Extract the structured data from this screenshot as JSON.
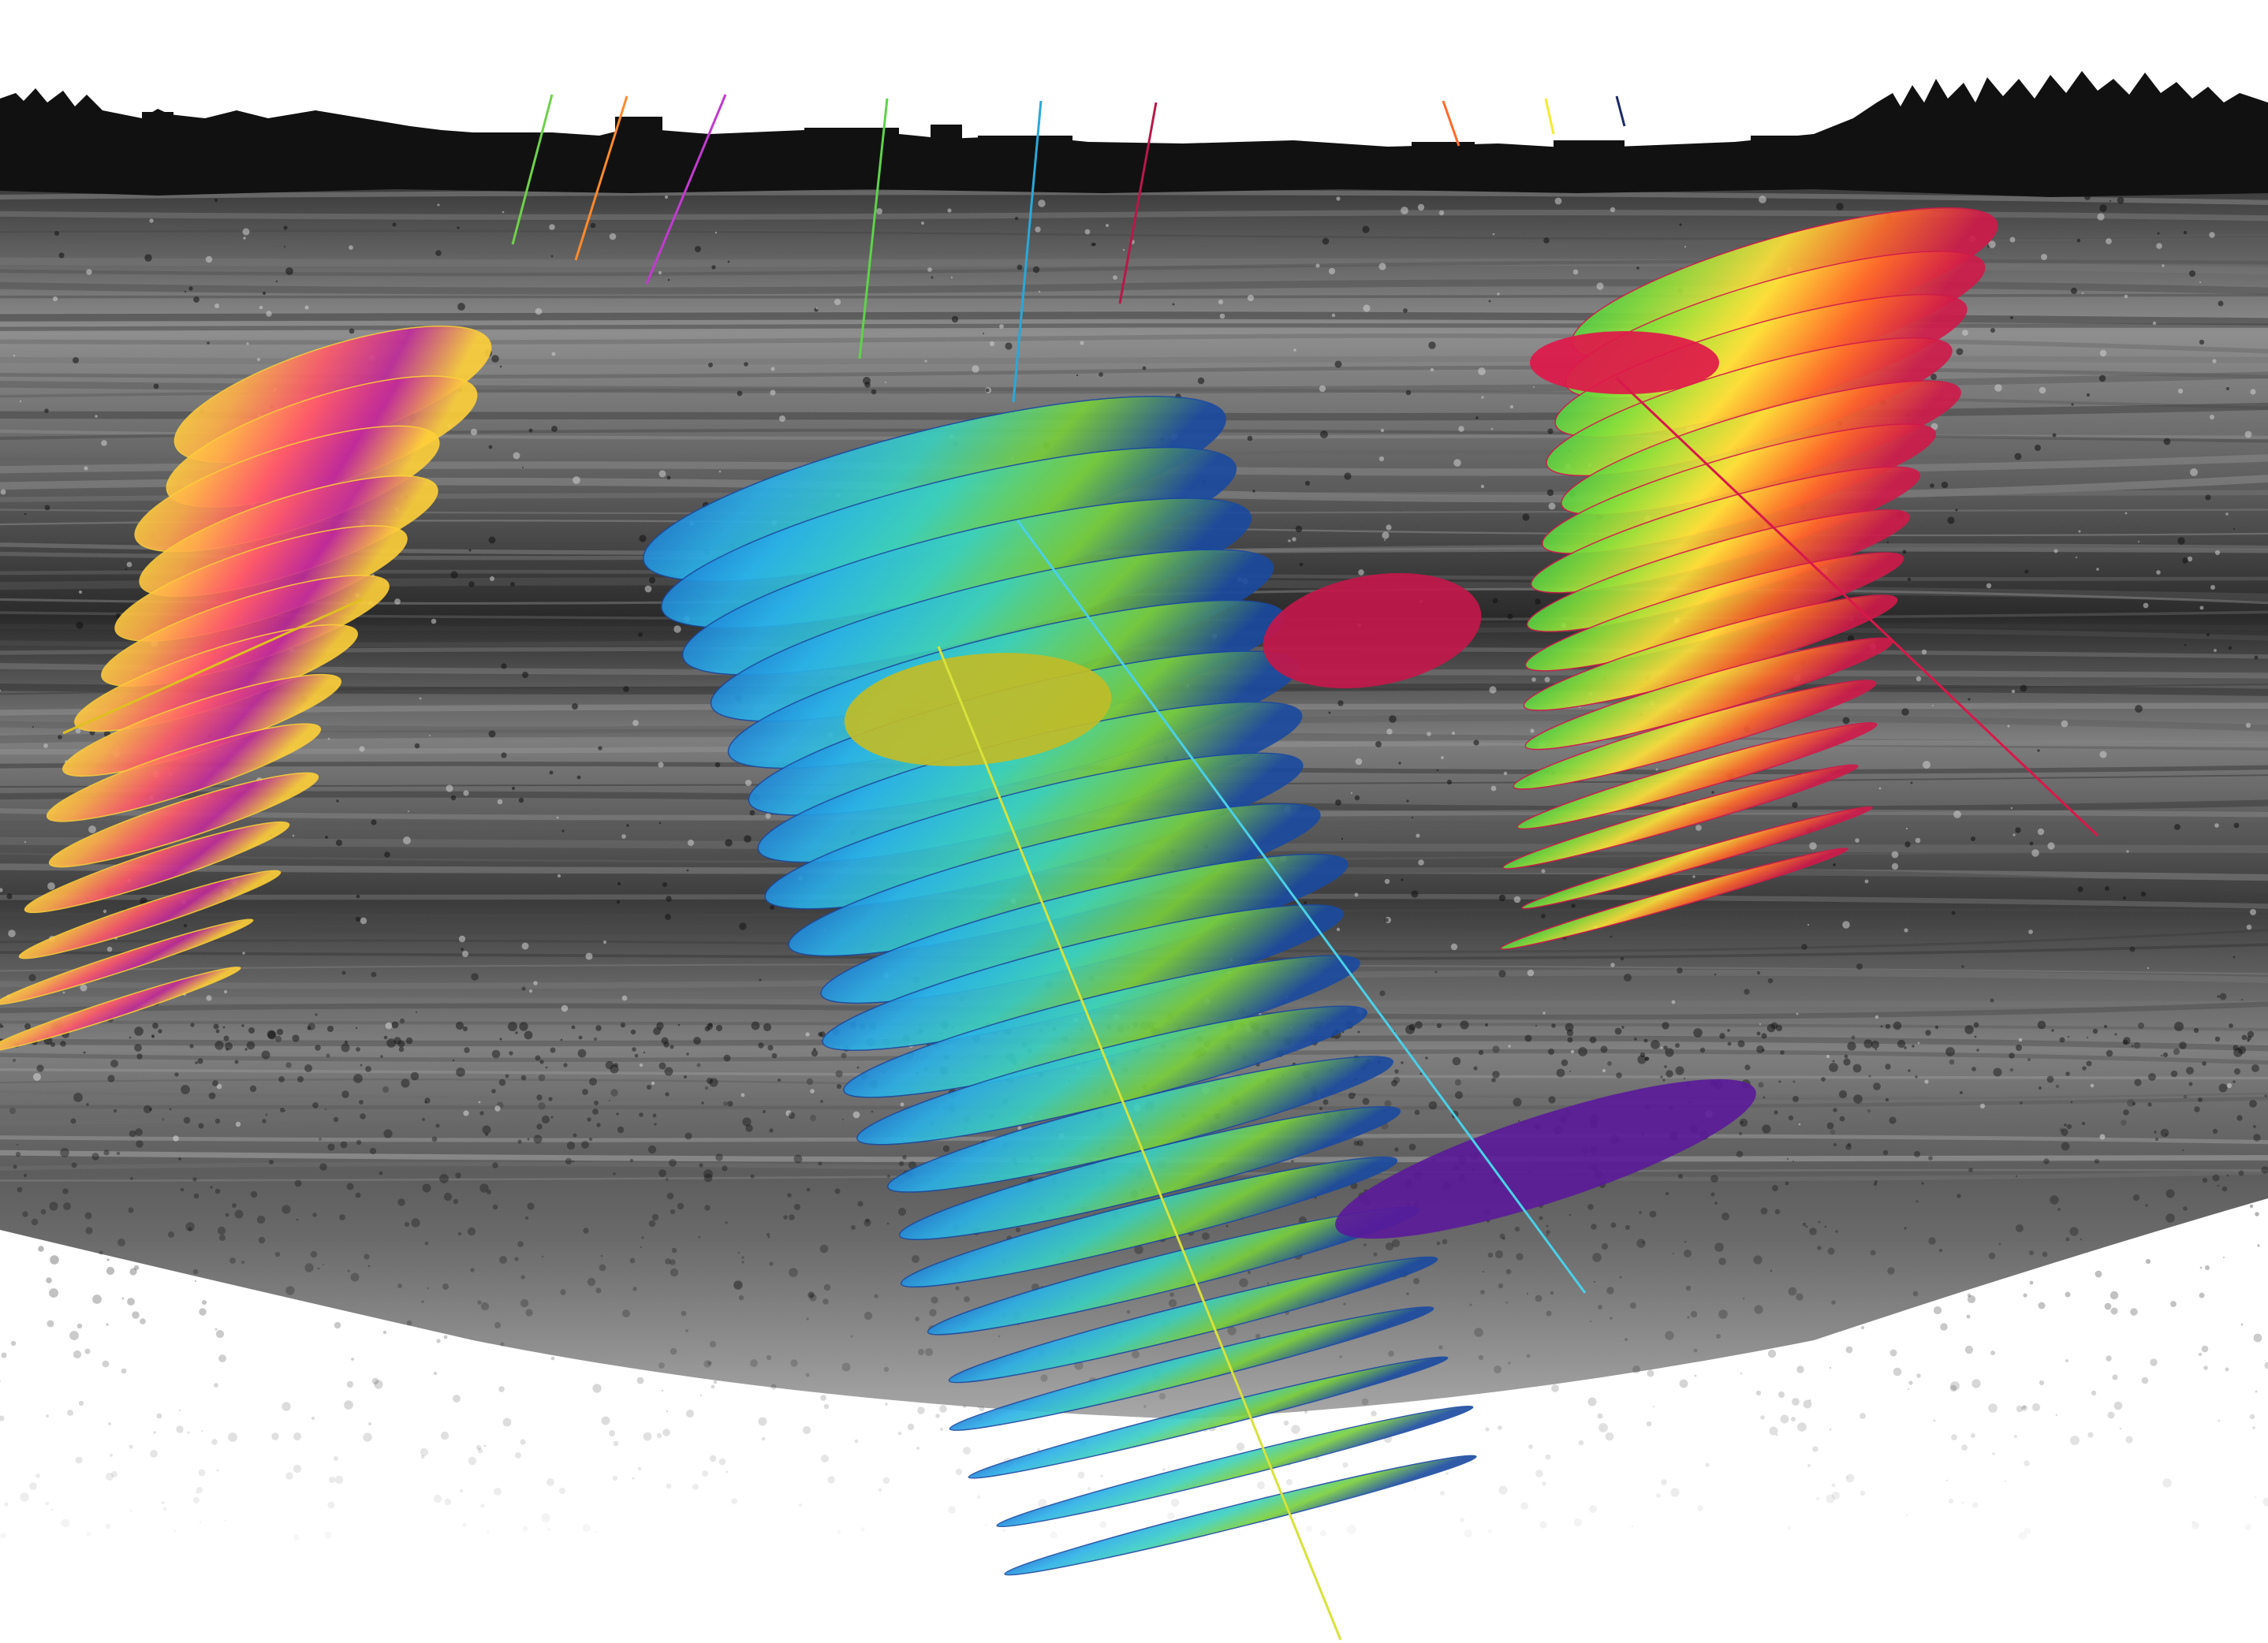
{
  "scene": {
    "kind": "3d-subsurface-fracture-model",
    "sky_color": "#ffffff",
    "skyline_color": "#111111",
    "rock_colors": [
      "#2a2a2a",
      "#555555",
      "#8a8a8a",
      "#bdbdbd"
    ],
    "deep_fade_color": "#ffffff",
    "wells": [
      {
        "id": "well-1",
        "color": "#6fd24a"
      },
      {
        "id": "well-2",
        "color": "#ff8a2a"
      },
      {
        "id": "well-3",
        "color": "#c23ad0"
      },
      {
        "id": "well-4",
        "color": "#5fd24a"
      },
      {
        "id": "well-5",
        "color": "#2aa8d8"
      },
      {
        "id": "well-6",
        "color": "#b8184a"
      },
      {
        "id": "well-7",
        "color": "#ff6a2a"
      },
      {
        "id": "well-8",
        "color": "#f2ec30"
      },
      {
        "id": "well-9",
        "color": "#1c2a6a"
      }
    ],
    "clusters": [
      {
        "id": "left-cluster",
        "palette": [
          "#ffe23a",
          "#ffb04a",
          "#ff5a6a",
          "#c02a9a",
          "#ffd03a"
        ],
        "stages": 14
      },
      {
        "id": "center-cluster",
        "palette": [
          "#1a6ad0",
          "#2ab0e8",
          "#3ad0c0",
          "#7ad03a",
          "#1a4aa0"
        ],
        "stages": 22
      },
      {
        "id": "right-cluster",
        "palette": [
          "#2ac84a",
          "#8ae03a",
          "#ffe23a",
          "#ff6a2a",
          "#d01a4a"
        ],
        "stages": 16
      }
    ]
  }
}
